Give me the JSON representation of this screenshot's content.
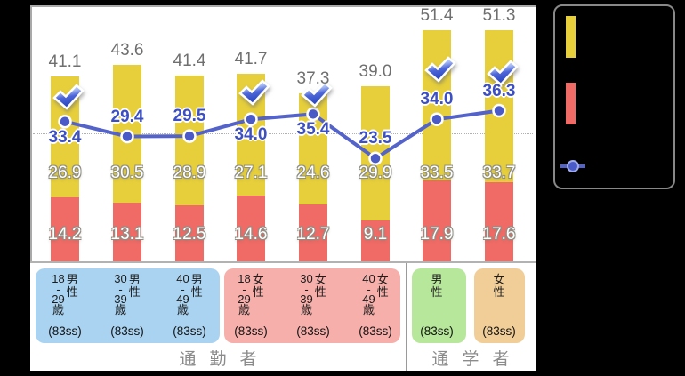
{
  "chart_data": {
    "type": "bar",
    "subtype": "stacked-bars-with-line-overlay",
    "title": "",
    "categories": [
      {
        "age": "18\n-\n29\n歳",
        "gender": "男\n性",
        "sample": "(83ss)",
        "band": "blue",
        "group": "commuter"
      },
      {
        "age": "30\n-\n39\n歳",
        "gender": "男\n性",
        "sample": "(83ss)",
        "band": "blue",
        "group": "commuter"
      },
      {
        "age": "40\n-\n49\n歳",
        "gender": "男\n性",
        "sample": "(83ss)",
        "band": "blue",
        "group": "commuter"
      },
      {
        "age": "18\n-\n29\n歳",
        "gender": "女\n性",
        "sample": "(83ss)",
        "band": "pink",
        "group": "commuter"
      },
      {
        "age": "30\n-\n39\n歳",
        "gender": "女\n性",
        "sample": "(83ss)",
        "band": "pink",
        "group": "commuter"
      },
      {
        "age": "40\n-\n49\n歳",
        "gender": "女\n性",
        "sample": "(83ss)",
        "band": "pink",
        "group": "commuter"
      },
      {
        "age": "",
        "gender": "男\n性",
        "sample": "(83ss)",
        "band": "green",
        "group": "student"
      },
      {
        "age": "",
        "gender": "女\n性",
        "sample": "(83ss)",
        "band": "orange",
        "group": "student"
      }
    ],
    "groups": [
      {
        "id": "commuter",
        "label": "通勤者"
      },
      {
        "id": "student",
        "label": "通学者"
      }
    ],
    "series": [
      {
        "name": "red-bottom-segment",
        "type": "bar",
        "color": "#f06b66",
        "values": [
          14.2,
          13.1,
          12.5,
          14.6,
          12.7,
          9.1,
          17.9,
          17.6
        ]
      },
      {
        "name": "yellow-top-segment",
        "type": "bar",
        "color": "#e6cf3b",
        "values": [
          26.9,
          30.5,
          28.9,
          27.1,
          24.6,
          29.9,
          33.5,
          33.7
        ]
      },
      {
        "name": "blue-line",
        "type": "line",
        "color": "#5363c9",
        "values": [
          33.4,
          29.4,
          29.5,
          34.0,
          35.4,
          23.5,
          34.0,
          36.3
        ]
      }
    ],
    "totals": [
      41.1,
      43.6,
      41.4,
      41.7,
      37.3,
      39.0,
      51.4,
      51.3
    ],
    "check_marks": [
      true,
      false,
      false,
      true,
      true,
      false,
      true,
      true
    ],
    "value_label_side": [
      "below",
      "above",
      "above",
      "below",
      "below",
      "above",
      "above",
      "above"
    ],
    "band_colors": {
      "blue": "#a9d3f1",
      "pink": "#f6afaa",
      "green": "#b7e79b",
      "orange": "#f1ce97"
    },
    "ylim": [
      0,
      57
    ],
    "grid": "single dotted horizontal reference line",
    "reference_line_y_approx": 28.5,
    "legend_position": "right",
    "check_color": "#3b55cc"
  },
  "legend": {
    "swatches": [
      {
        "name": "yellow-bar-swatch",
        "color": "#e6cf3b"
      },
      {
        "name": "red-bar-swatch",
        "color": "#f06b66"
      },
      {
        "name": "line-marker",
        "color": "#5363c9"
      }
    ]
  }
}
